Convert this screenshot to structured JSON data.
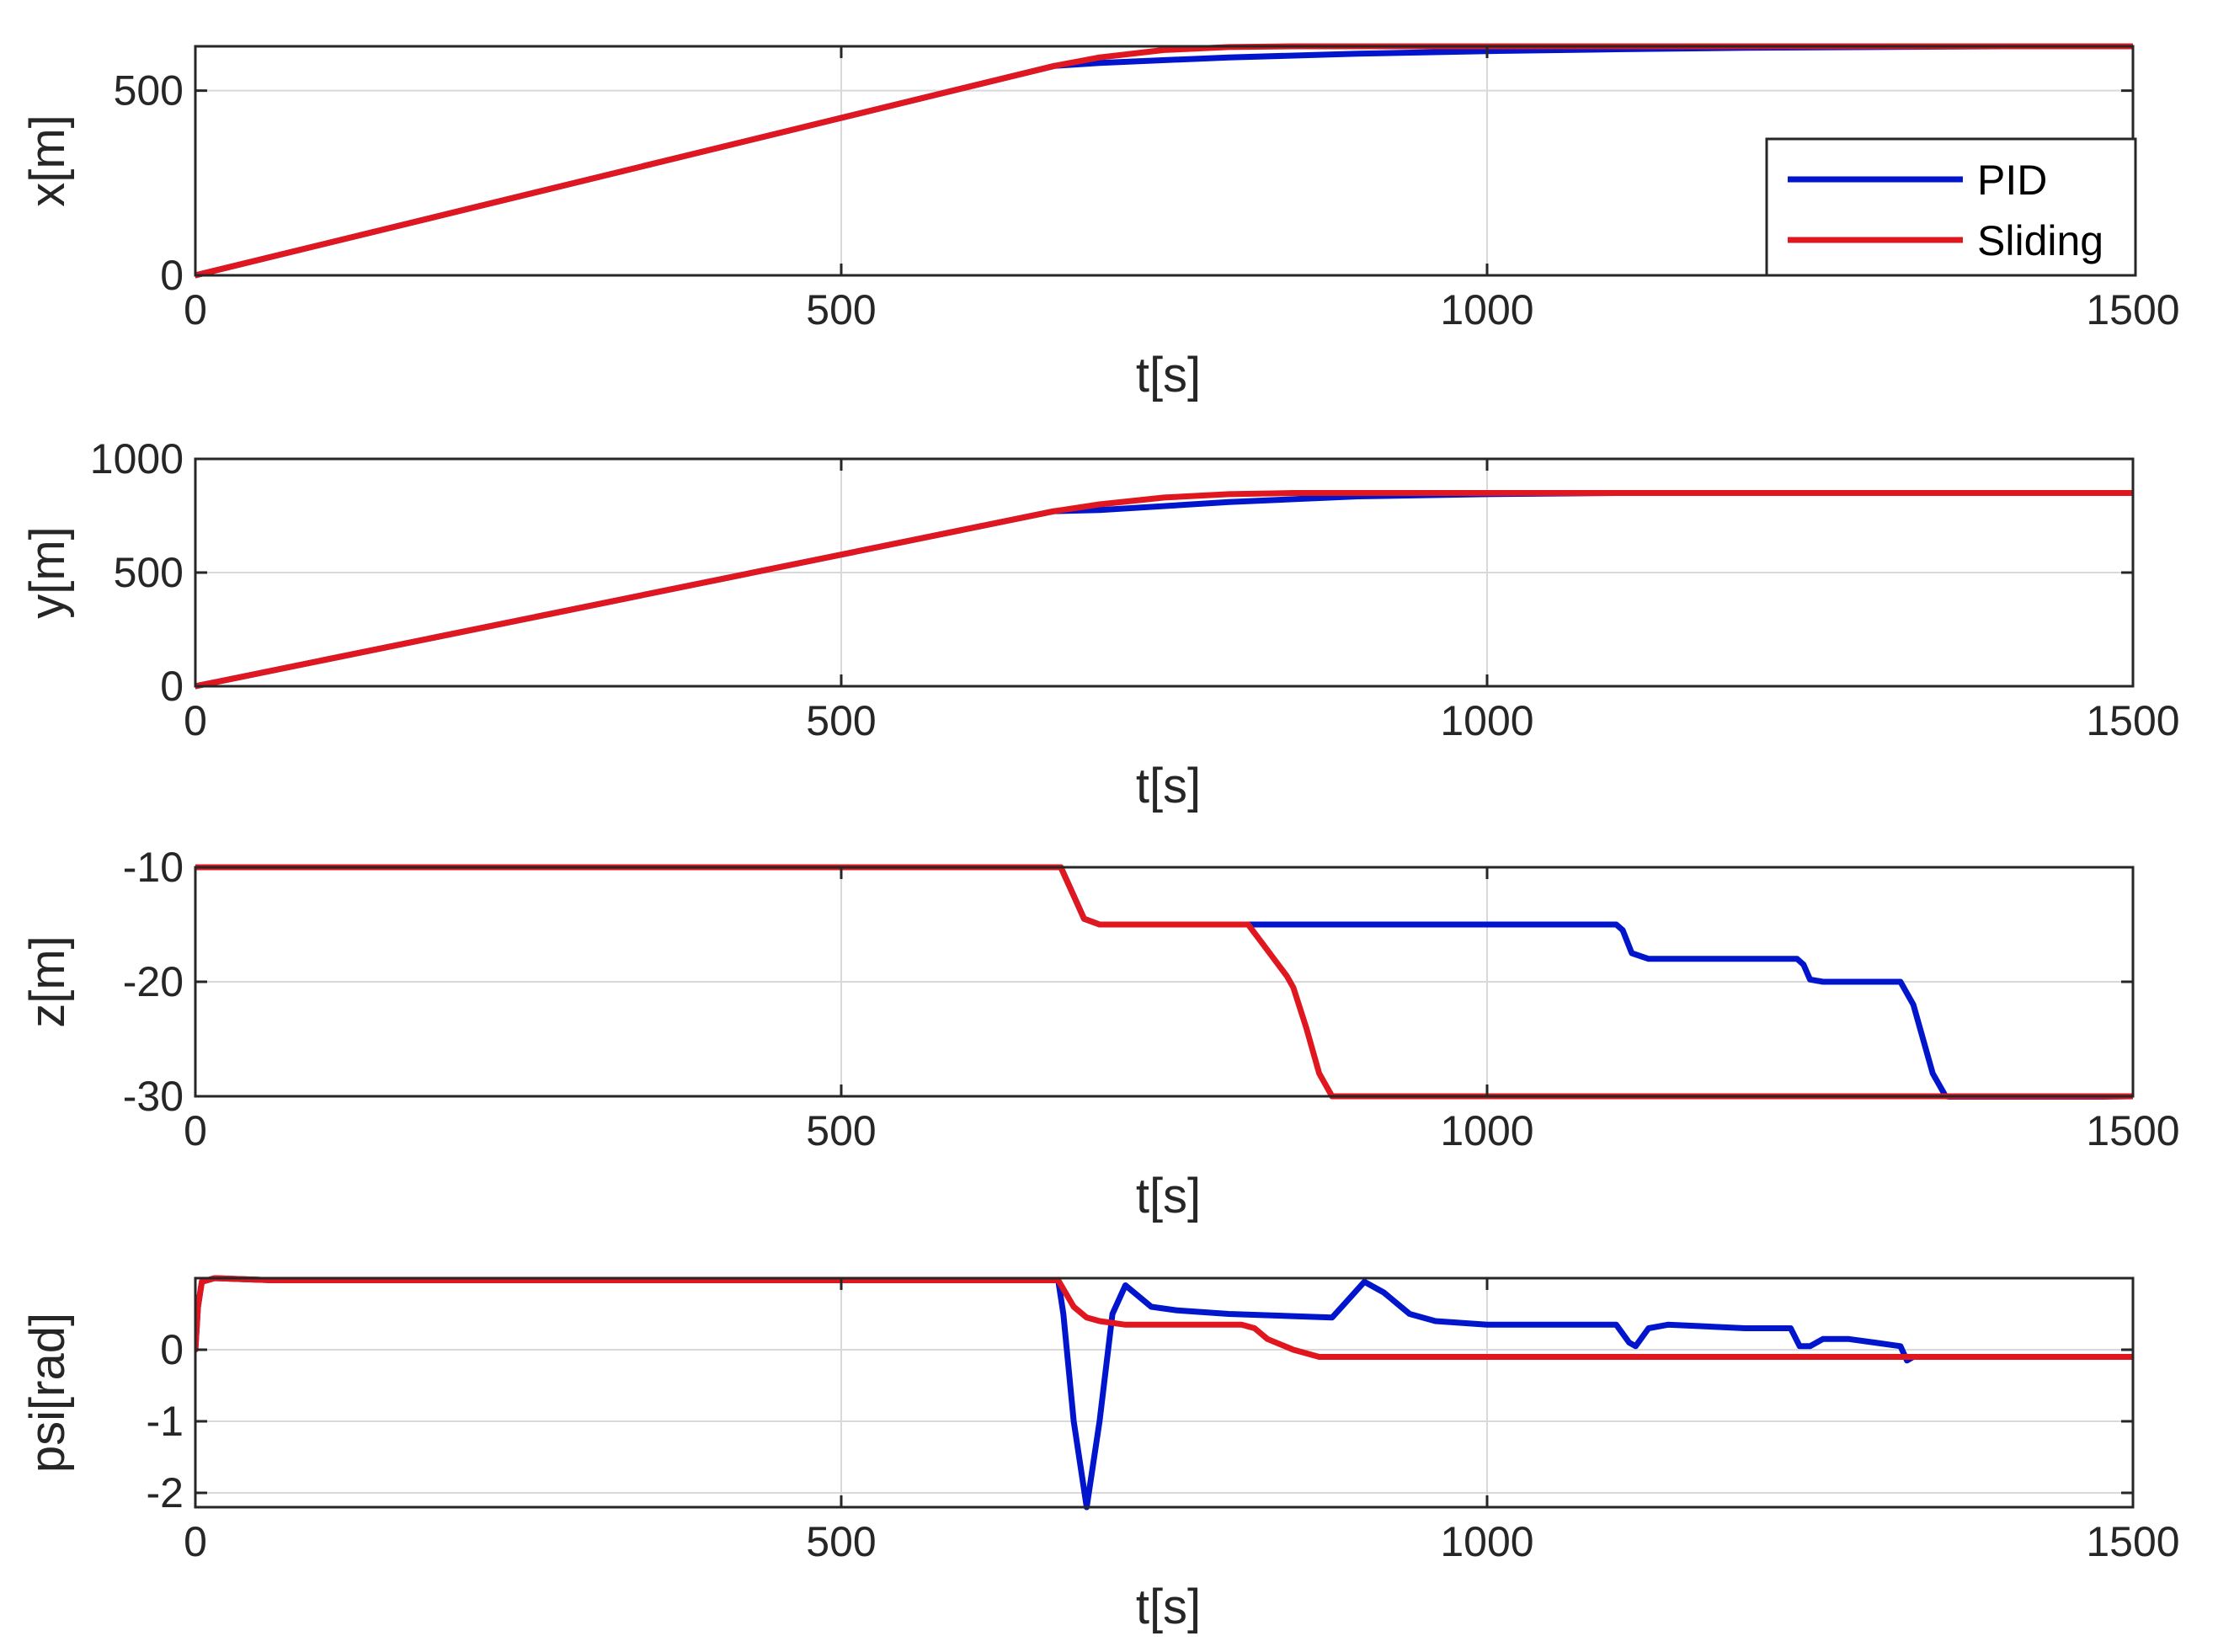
{
  "chart_data": [
    {
      "type": "line",
      "xlabel": "t[s]",
      "ylabel": "x[m]",
      "xlim": [
        0,
        1500
      ],
      "ylim": [
        0,
        620
      ],
      "xticks": [
        "0",
        "500",
        "1000",
        "1500"
      ],
      "yticks": [
        "0",
        "500"
      ],
      "ytick_values": [
        0,
        500
      ],
      "grid": true,
      "legend": {
        "placement": "bottom-right",
        "entries": [
          "PID",
          "Sliding"
        ]
      },
      "series": [
        {
          "name": "PID",
          "color": "#0015cc",
          "x": [
            0,
            665,
            700,
            800,
            900,
            1000,
            1100,
            1200,
            1300,
            1400,
            1500
          ],
          "y": [
            0,
            567,
            575,
            590,
            600,
            607,
            612,
            616,
            618,
            620,
            620
          ]
        },
        {
          "name": "Sliding",
          "color": "#e0171f",
          "x": [
            0,
            665,
            700,
            750,
            800,
            850,
            900,
            1000,
            1500
          ],
          "y": [
            0,
            567,
            590,
            610,
            618,
            620,
            620,
            620,
            620
          ]
        }
      ]
    },
    {
      "type": "line",
      "xlabel": "t[s]",
      "ylabel": "y[m]",
      "xlim": [
        0,
        1500
      ],
      "ylim": [
        0,
        1000
      ],
      "xticks": [
        "0",
        "500",
        "1000",
        "1500"
      ],
      "yticks": [
        "0",
        "500",
        "1000"
      ],
      "ytick_values": [
        0,
        500,
        1000
      ],
      "grid": true,
      "series": [
        {
          "name": "PID",
          "color": "#0015cc",
          "x": [
            0,
            665,
            700,
            800,
            900,
            1000,
            1100,
            1500
          ],
          "y": [
            0,
            770,
            775,
            810,
            835,
            845,
            850,
            850
          ]
        },
        {
          "name": "Sliding",
          "color": "#e0171f",
          "x": [
            0,
            665,
            700,
            750,
            800,
            850,
            900,
            1000,
            1500
          ],
          "y": [
            0,
            770,
            800,
            830,
            845,
            850,
            850,
            850,
            850
          ]
        }
      ]
    },
    {
      "type": "line",
      "xlabel": "t[s]",
      "ylabel": "z[m]",
      "xlim": [
        0,
        1500
      ],
      "ylim": [
        -30,
        -10
      ],
      "xticks": [
        "0",
        "500",
        "1000",
        "1500"
      ],
      "yticks": [
        "-10",
        "-20",
        "-30"
      ],
      "ytick_values": [
        -10,
        -20,
        -30
      ],
      "grid": true,
      "series": [
        {
          "name": "PID",
          "color": "#0015cc",
          "x": [
            0,
            670,
            678,
            688,
            700,
            1100,
            1105,
            1112,
            1125,
            1240,
            1245,
            1250,
            1260,
            1320,
            1330,
            1345,
            1355,
            1370,
            1500
          ],
          "y": [
            -10,
            -10,
            -12,
            -14.5,
            -15,
            -15,
            -15.5,
            -17.5,
            -18,
            -18,
            -18.5,
            -19.8,
            -20,
            -20,
            -22,
            -28,
            -30,
            -30.2,
            -30
          ]
        },
        {
          "name": "Sliding",
          "color": "#e0171f",
          "x": [
            0,
            670,
            678,
            688,
            700,
            815,
            825,
            835,
            845,
            850,
            860,
            870,
            880,
            900,
            1500
          ],
          "y": [
            -10,
            -10,
            -12,
            -14.5,
            -15,
            -15,
            -16.5,
            -18,
            -19.5,
            -20.5,
            -24,
            -28,
            -30,
            -30,
            -30
          ]
        }
      ]
    },
    {
      "type": "line",
      "xlabel": "t[s]",
      "ylabel": "psi[rad]",
      "xlim": [
        0,
        1500
      ],
      "ylim": [
        -2.2,
        1.0
      ],
      "xticks": [
        "0",
        "500",
        "1000",
        "1500"
      ],
      "yticks": [
        "0",
        "-1",
        "-2"
      ],
      "ytick_values": [
        0,
        -1,
        -2
      ],
      "grid": true,
      "series": [
        {
          "name": "PID",
          "color": "#0015cc",
          "x": [
            0,
            2,
            5,
            15,
            60,
            300,
            668,
            672,
            680,
            690,
            700,
            710,
            720,
            740,
            760,
            800,
            880,
            890,
            905,
            920,
            940,
            960,
            1000,
            1100,
            1110,
            1115,
            1125,
            1140,
            1200,
            1235,
            1242,
            1250,
            1260,
            1280,
            1300,
            1320,
            1325,
            1330,
            1350,
            1500
          ],
          "y": [
            0,
            0.6,
            0.95,
            1.0,
            0.97,
            0.97,
            0.97,
            0.5,
            -1.0,
            -2.2,
            -1.0,
            0.5,
            0.9,
            0.6,
            0.55,
            0.5,
            0.45,
            0.65,
            0.95,
            0.8,
            0.5,
            0.4,
            0.35,
            0.35,
            0.1,
            0.05,
            0.3,
            0.35,
            0.3,
            0.3,
            0.05,
            0.05,
            0.15,
            0.15,
            0.1,
            0.05,
            -0.15,
            -0.1,
            -0.1,
            -0.1
          ]
        },
        {
          "name": "Sliding",
          "color": "#e0171f",
          "x": [
            0,
            2,
            5,
            15,
            60,
            300,
            668,
            680,
            690,
            700,
            720,
            760,
            810,
            820,
            830,
            850,
            870,
            900,
            1000,
            1500
          ],
          "y": [
            0,
            0.6,
            0.95,
            1.0,
            0.97,
            0.97,
            0.97,
            0.6,
            0.45,
            0.4,
            0.35,
            0.35,
            0.35,
            0.3,
            0.15,
            0.0,
            -0.1,
            -0.1,
            -0.1,
            -0.1
          ]
        }
      ]
    }
  ]
}
